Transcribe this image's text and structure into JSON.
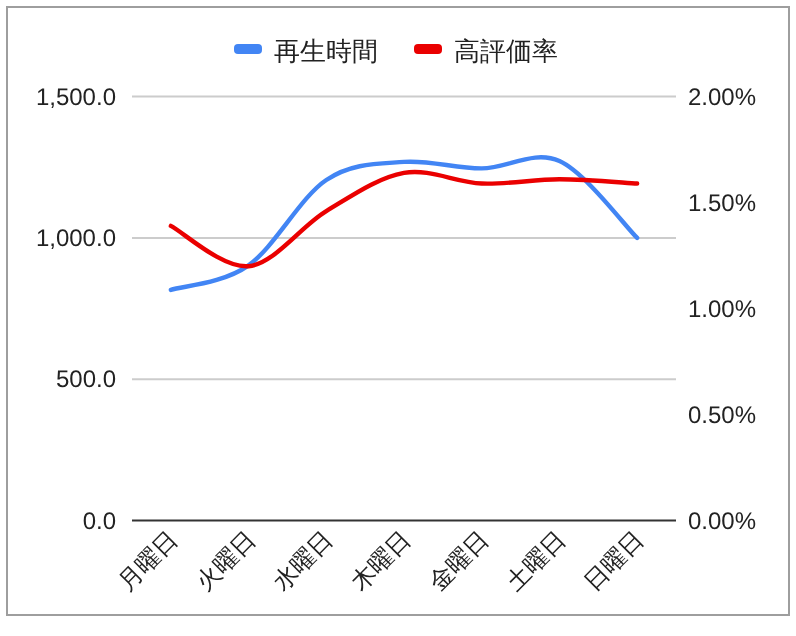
{
  "chart_data": {
    "type": "line",
    "categories": [
      "月曜日",
      "火曜日",
      "水曜日",
      "木曜日",
      "金曜日",
      "土曜日",
      "日曜日"
    ],
    "series": [
      {
        "name": "再生時間",
        "color": "#4285f4",
        "values": [
          816,
          903,
          1205,
          1269,
          1246,
          1272,
          1000
        ]
      },
      {
        "name": "高評価率",
        "color": "#ea0000",
        "axis": "y2",
        "values": [
          1.39,
          1.2,
          1.46,
          1.64,
          1.59,
          1.61,
          1.59
        ]
      }
    ],
    "ylim": [
      0,
      1500
    ],
    "yticks": [
      {
        "value": 0,
        "label": "0.0"
      },
      {
        "value": 500,
        "label": "500.0"
      },
      {
        "value": 1000,
        "label": "1,000.0"
      },
      {
        "value": 1500,
        "label": "1,500.0"
      }
    ],
    "y2lim": [
      0,
      2
    ],
    "y2ticks": [
      {
        "value": 0,
        "label": "0.00%"
      },
      {
        "value": 0.5,
        "label": "0.50%"
      },
      {
        "value": 1,
        "label": "1.00%"
      },
      {
        "value": 1.5,
        "label": "1.50%"
      },
      {
        "value": 2,
        "label": "2.00%"
      }
    ],
    "grid": "y",
    "legend": "top"
  }
}
